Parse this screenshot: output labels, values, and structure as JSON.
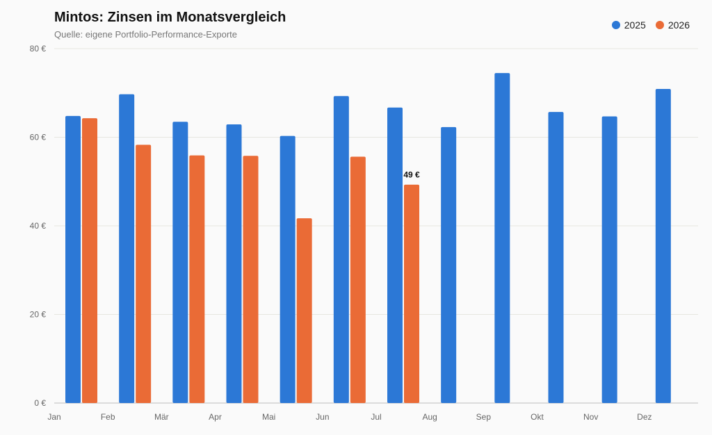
{
  "chart_data": {
    "type": "bar",
    "title": "Mintos: Zinsen im Monatsvergleich",
    "subtitle": "Quelle: eigene Portfolio-Performance-Exporte",
    "categories": [
      "Jan",
      "Feb",
      "Mär",
      "Apr",
      "Mai",
      "Jun",
      "Jul",
      "Aug",
      "Sep",
      "Okt",
      "Nov",
      "Dez"
    ],
    "series": [
      {
        "name": "2025",
        "color": "#2c78d6",
        "values": [
          64.8,
          69.7,
          63.5,
          62.9,
          60.3,
          69.3,
          66.7,
          62.3,
          74.5,
          65.7,
          64.7,
          70.9
        ]
      },
      {
        "name": "2026",
        "color": "#ea6b36",
        "values": [
          64.3,
          58.3,
          55.9,
          55.8,
          41.7,
          55.6,
          49.3,
          null,
          null,
          null,
          null,
          null
        ]
      }
    ],
    "data_labels": [
      {
        "series": 1,
        "index": 6,
        "text": "49 €"
      }
    ],
    "yticks": [
      "0 €",
      "20 €",
      "40 €",
      "60 €",
      "80 €"
    ],
    "ytick_values": [
      0,
      20,
      40,
      60,
      80
    ],
    "ylim": [
      0,
      80
    ],
    "grid": true,
    "legend_position": "top-right"
  }
}
